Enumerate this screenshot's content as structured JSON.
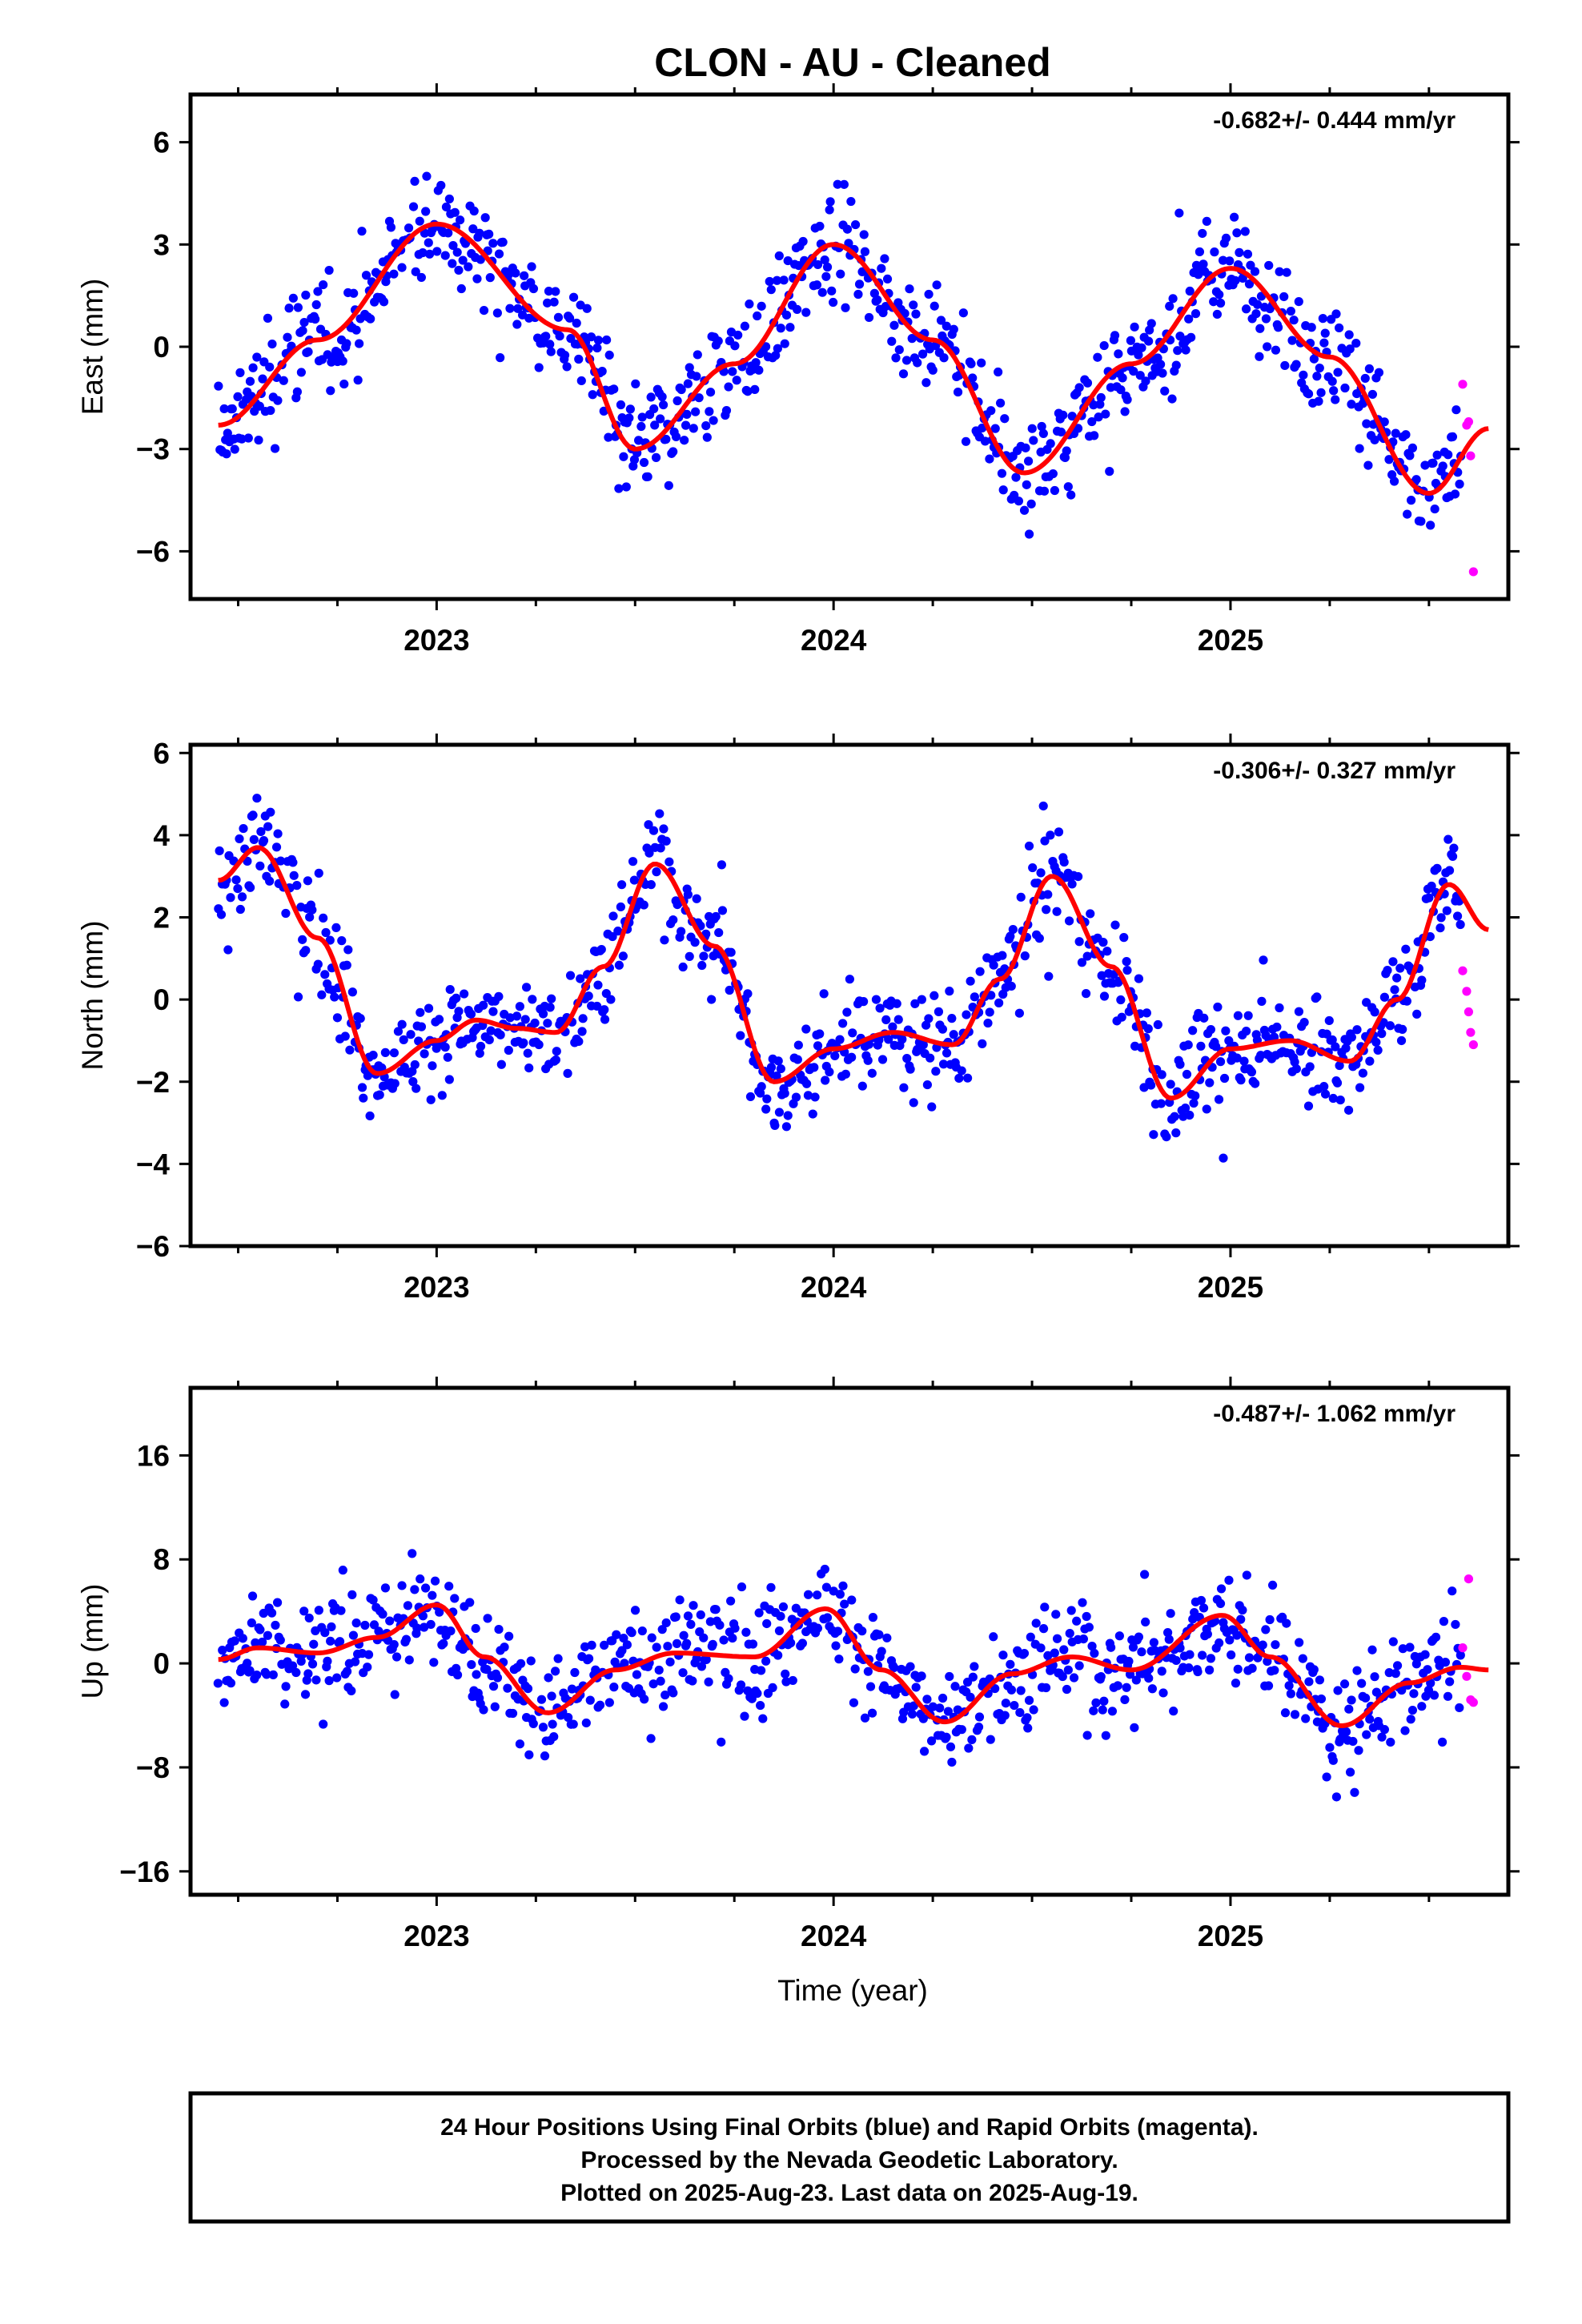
{
  "title": "CLON  - AU - Cleaned",
  "xlabel": "Time (year)",
  "footer": [
    "24 Hour Positions Using Final Orbits (blue) and Rapid Orbits (magenta).",
    "Processed by the Nevada Geodetic Laboratory.",
    "Plotted on 2025-Aug-23. Last data on 2025-Aug-19."
  ],
  "colors": {
    "final_orbits": "#0000ff",
    "rapid_orbits": "#ff00ff",
    "model_fit": "#ff0000",
    "axes": "#000000",
    "background": "#ffffff"
  },
  "chart_data": [
    {
      "type": "scatter",
      "ylabel": "East (mm)",
      "rate_text": "-0.682+/- 0.444 mm/yr",
      "xlim": [
        2022.38,
        2025.7
      ],
      "ylim": [
        -7.4,
        7.4
      ],
      "xticks": [
        2023,
        2024,
        2025
      ],
      "yticks": [
        -6,
        -3,
        0,
        3,
        6
      ],
      "grid": false,
      "fit": {
        "x": [
          2022.45,
          2022.7,
          2023.0,
          2023.33,
          2023.5,
          2023.75,
          2024.0,
          2024.25,
          2024.48,
          2024.75,
          2025.0,
          2025.25,
          2025.5,
          2025.65
        ],
        "y": [
          -2.3,
          0.2,
          3.6,
          0.5,
          -3.0,
          -0.5,
          3.0,
          0.2,
          -3.7,
          -0.5,
          2.3,
          -0.3,
          -4.3,
          -2.4
        ]
      },
      "series": [
        {
          "name": "Final Orbits",
          "color": "#0000ff",
          "x_start": 2022.45,
          "x_end": 2025.58,
          "n": 900,
          "scatter": 1.3
        },
        {
          "name": "Rapid Orbits",
          "color": "#ff00ff",
          "x": [
            2025.585,
            2025.595,
            2025.6,
            2025.605,
            2025.612
          ],
          "y": [
            -1.1,
            -2.3,
            -2.2,
            -3.2,
            -6.6
          ]
        }
      ]
    },
    {
      "type": "scatter",
      "ylabel": "North (mm)",
      "rate_text": "-0.306+/- 0.327 mm/yr",
      "xlim": [
        2022.38,
        2025.7
      ],
      "ylim": [
        -6.0,
        6.2
      ],
      "xticks": [
        2023,
        2024,
        2025
      ],
      "yticks": [
        -6,
        -4,
        -2,
        0,
        2,
        4,
        6
      ],
      "grid": false,
      "fit": {
        "x": [
          2022.45,
          2022.55,
          2022.7,
          2022.85,
          2023.0,
          2023.1,
          2023.2,
          2023.3,
          2023.42,
          2023.55,
          2023.7,
          2023.85,
          2024.0,
          2024.15,
          2024.3,
          2024.42,
          2024.55,
          2024.7,
          2024.85,
          2025.0,
          2025.15,
          2025.3,
          2025.42,
          2025.55,
          2025.65
        ],
        "y": [
          2.9,
          3.7,
          1.5,
          -1.8,
          -1.0,
          -0.5,
          -0.7,
          -0.8,
          0.8,
          3.3,
          1.3,
          -2.0,
          -1.2,
          -0.8,
          -1.1,
          0.5,
          3.0,
          0.8,
          -2.4,
          -1.2,
          -1.0,
          -1.5,
          0.0,
          2.8,
          1.7
        ]
      },
      "series": [
        {
          "name": "Final Orbits",
          "color": "#0000ff",
          "x_start": 2022.45,
          "x_end": 2025.58,
          "n": 900,
          "scatter": 1.0
        },
        {
          "name": "Rapid Orbits",
          "color": "#ff00ff",
          "x": [
            2025.585,
            2025.595,
            2025.6,
            2025.605,
            2025.612
          ],
          "y": [
            0.7,
            0.2,
            -0.3,
            -0.8,
            -1.1
          ]
        }
      ]
    },
    {
      "type": "scatter",
      "ylabel": "Up (mm)",
      "rate_text": "-0.487+/- 1.062 mm/yr",
      "xlim": [
        2022.38,
        2025.7
      ],
      "ylim": [
        -17.8,
        21.2
      ],
      "xticks": [
        2023,
        2024,
        2025
      ],
      "yticks": [
        -16,
        -8,
        0,
        8,
        16
      ],
      "grid": false,
      "fit": {
        "x": [
          2022.45,
          2022.55,
          2022.7,
          2022.85,
          2023.0,
          2023.12,
          2023.28,
          2023.45,
          2023.6,
          2023.8,
          2023.98,
          2024.12,
          2024.28,
          2024.45,
          2024.6,
          2024.75,
          2024.98,
          2025.1,
          2025.28,
          2025.45,
          2025.58,
          2025.65
        ],
        "y": [
          0.3,
          1.2,
          0.8,
          2.0,
          4.5,
          0.5,
          -3.8,
          -0.5,
          0.8,
          0.5,
          4.2,
          -0.5,
          -4.5,
          -0.8,
          0.5,
          -0.5,
          3.7,
          0.5,
          -4.8,
          -1.5,
          -0.3,
          -0.5
        ]
      },
      "series": [
        {
          "name": "Final Orbits",
          "color": "#0000ff",
          "x_start": 2022.45,
          "x_end": 2025.58,
          "n": 900,
          "scatter": 3.4
        },
        {
          "name": "Rapid Orbits",
          "color": "#ff00ff",
          "x": [
            2025.585,
            2025.595,
            2025.6,
            2025.605,
            2025.612
          ],
          "y": [
            1.2,
            -1.0,
            6.5,
            -2.8,
            -3.0
          ]
        }
      ]
    }
  ]
}
